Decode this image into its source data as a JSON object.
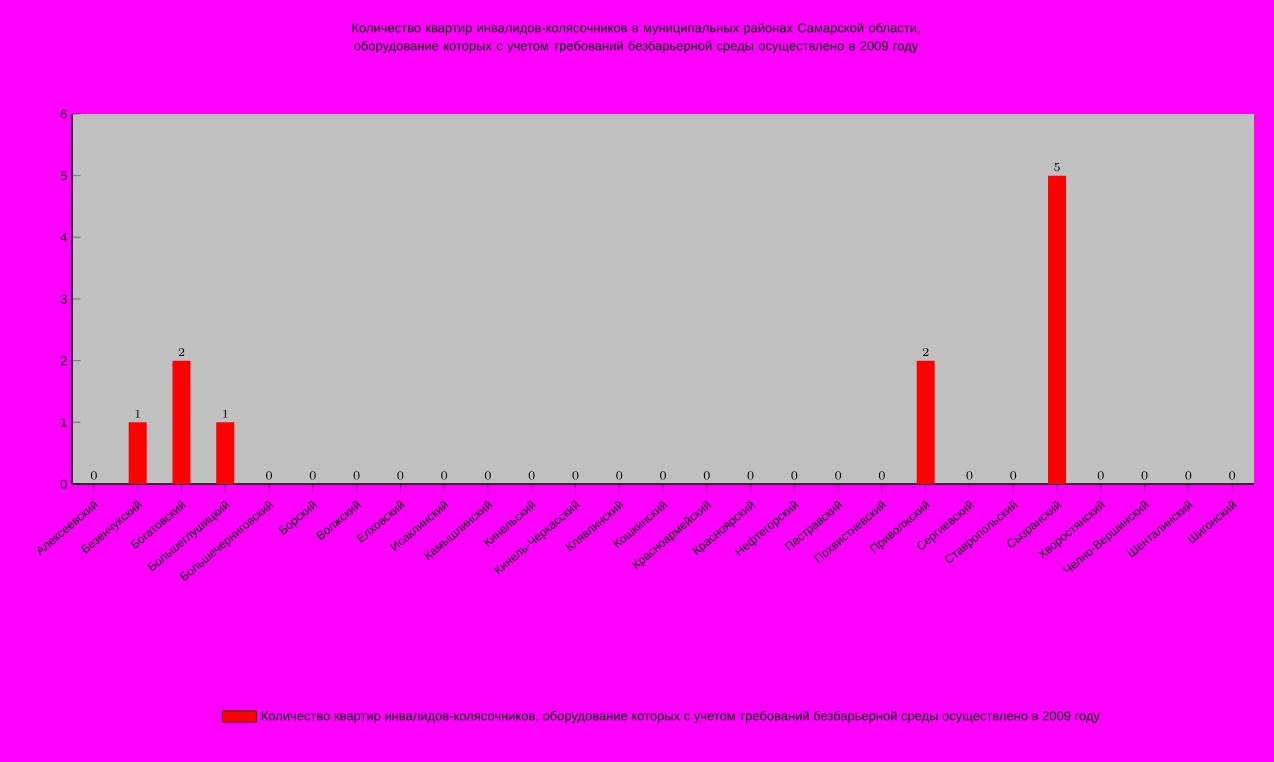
{
  "chart_data": {
    "type": "bar",
    "title": "Количество квартир инвалидов-колясочников в муниципальных районах Самарской области, оборудование которых с учетом требований безбарьерной среды осуществлено в 2009 году",
    "categories": [
      "Алексеевский",
      "Безенчукский",
      "Богатовский",
      "Большеглушицкий",
      "Большечерниговский",
      "Борский",
      "Волжский",
      "Елховский",
      "Исаклинский",
      "Камышлинский",
      "Кинельский",
      "Кинель-Черкасский",
      "Клявлинский",
      "Кошкинский",
      "Красноармейский",
      "Красноярский",
      "Нефтегорский",
      "Пестравский",
      "Похвистневский",
      "Приволжский",
      "Сергиевский",
      "Ставропольский",
      "Сызранский",
      "Хворостянский",
      "Челно-Вершинский",
      "Шенталинский",
      "Шигонский"
    ],
    "series": [
      {
        "name": "Количество квартир инвалидов-колясочников, оборудование которых с учетом требований безбарьерной среды осуществлено в 2009 году",
        "color": "#ff0000",
        "values": [
          0,
          1,
          2,
          1,
          0,
          0,
          0,
          0,
          0,
          0,
          0,
          0,
          0,
          0,
          0,
          0,
          0,
          0,
          0,
          2,
          0,
          0,
          5,
          0,
          0,
          0,
          0
        ]
      }
    ],
    "ylim": [
      0,
      6
    ],
    "yticks": [
      0,
      1,
      2,
      3,
      4,
      5,
      6
    ],
    "data_labels": true,
    "legend": "bottom",
    "grid": false
  }
}
